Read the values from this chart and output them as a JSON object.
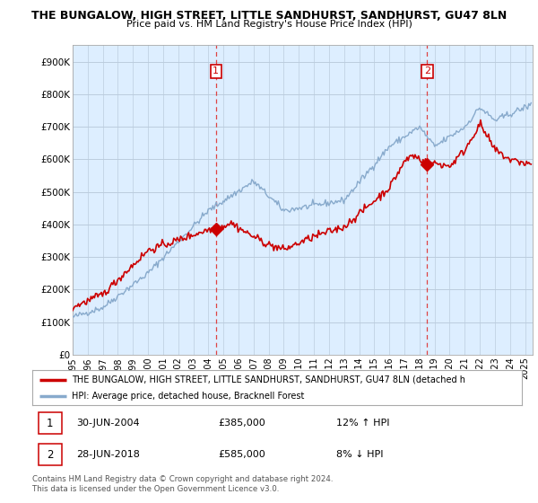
{
  "title1": "THE BUNGALOW, HIGH STREET, LITTLE SANDHURST, SANDHURST, GU47 8LN",
  "title2": "Price paid vs. HM Land Registry's House Price Index (HPI)",
  "ylabel_ticks": [
    "£0",
    "£100K",
    "£200K",
    "£300K",
    "£400K",
    "£500K",
    "£600K",
    "£700K",
    "£800K",
    "£900K"
  ],
  "ytick_vals": [
    0,
    100000,
    200000,
    300000,
    400000,
    500000,
    600000,
    700000,
    800000,
    900000
  ],
  "ylim": [
    0,
    950000
  ],
  "xlim_start": 1995.0,
  "xlim_end": 2025.5,
  "xtick_years": [
    1995,
    1996,
    1997,
    1998,
    1999,
    2000,
    2001,
    2002,
    2003,
    2004,
    2005,
    2006,
    2007,
    2008,
    2009,
    2010,
    2011,
    2012,
    2013,
    2014,
    2015,
    2016,
    2017,
    2018,
    2019,
    2020,
    2021,
    2022,
    2023,
    2024,
    2025
  ],
  "sale1_x": 2004.5,
  "sale1_y": 385000,
  "sale1_label": "1",
  "sale1_date": "30-JUN-2004",
  "sale1_price": "£385,000",
  "sale1_hpi": "12% ↑ HPI",
  "sale2_x": 2018.5,
  "sale2_y": 585000,
  "sale2_label": "2",
  "sale2_date": "28-JUN-2018",
  "sale2_price": "£585,000",
  "sale2_hpi": "8% ↓ HPI",
  "line1_color": "#cc0000",
  "line2_color": "#88aacc",
  "vline_color": "#dd4444",
  "chart_bg": "#ddeeff",
  "bg_color": "#ffffff",
  "grid_color": "#bbccdd",
  "legend_label1": "THE BUNGALOW, HIGH STREET, LITTLE SANDHURST, SANDHURST, GU47 8LN (detached h",
  "legend_label2": "HPI: Average price, detached house, Bracknell Forest",
  "footer": "Contains HM Land Registry data © Crown copyright and database right 2024.\nThis data is licensed under the Open Government Licence v3.0."
}
